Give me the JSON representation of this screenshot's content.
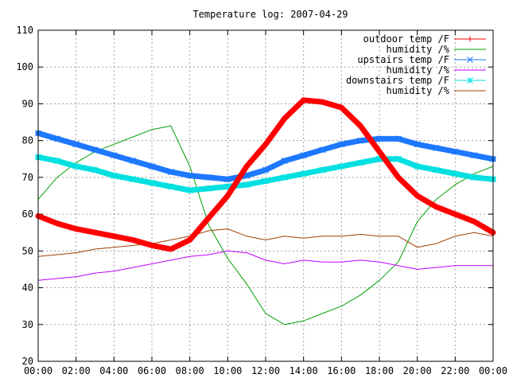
{
  "chart_data": {
    "type": "line",
    "title": "Temperature log: 2007-04-29",
    "xlabel": "",
    "ylabel": "",
    "xlim": [
      0,
      24
    ],
    "ylim": [
      20,
      110
    ],
    "grid": true,
    "legend_position": "top-right",
    "x_ticks": [
      "00:00",
      "02:00",
      "04:00",
      "06:00",
      "08:00",
      "10:00",
      "12:00",
      "14:00",
      "16:00",
      "18:00",
      "20:00",
      "22:00",
      "00:00"
    ],
    "y_ticks": [
      20,
      30,
      40,
      50,
      60,
      70,
      80,
      90,
      100,
      110
    ],
    "x": [
      0,
      1,
      2,
      3,
      4,
      5,
      6,
      7,
      8,
      9,
      10,
      11,
      12,
      13,
      14,
      15,
      16,
      17,
      18,
      19,
      20,
      21,
      22,
      23,
      24
    ],
    "series": [
      {
        "name": "outdoor temp /F",
        "color": "#ff0000",
        "marker": "plus",
        "values": [
          59.5,
          57.5,
          56,
          55,
          54,
          53,
          51.5,
          50.5,
          53,
          59,
          65,
          73,
          79,
          86,
          91,
          90.5,
          89,
          84,
          77,
          70,
          65,
          62,
          60,
          58,
          55
        ]
      },
      {
        "name": "humidity /%",
        "color": "#00a000",
        "marker": "none",
        "values": [
          64,
          70,
          74,
          77,
          79,
          81,
          83,
          84,
          73,
          57,
          48,
          41,
          33,
          30,
          31,
          33,
          35,
          38,
          42,
          47,
          58,
          64,
          68,
          71,
          73
        ]
      },
      {
        "name": "upstairs temp /F",
        "color": "#1e78ff",
        "marker": "x",
        "values": [
          82,
          80.5,
          79,
          77.5,
          76,
          74.5,
          73,
          71.5,
          70.5,
          70,
          69.5,
          70.5,
          72,
          74.5,
          76,
          77.5,
          79,
          80,
          80.5,
          80.5,
          79,
          78,
          77,
          76,
          75
        ]
      },
      {
        "name": "humidity /%",
        "color": "#c000ff",
        "marker": "none",
        "values": [
          42,
          42.5,
          43,
          44,
          44.5,
          45.5,
          46.5,
          47.5,
          48.5,
          49,
          50,
          49.5,
          47.5,
          46.5,
          47.5,
          47,
          47,
          47.5,
          47,
          46,
          45,
          45.5,
          46,
          46,
          46
        ]
      },
      {
        "name": "downstairs temp /F",
        "color": "#00e0e0",
        "marker": "star",
        "values": [
          75.5,
          74.5,
          73,
          72,
          70.5,
          69.5,
          68.5,
          67.5,
          66.5,
          67,
          67.5,
          68,
          69,
          70,
          71,
          72,
          73,
          74,
          75,
          75,
          73,
          72,
          71,
          70,
          69.5
        ]
      },
      {
        "name": "humidity /%",
        "color": "#a04000",
        "marker": "none",
        "values": [
          48.5,
          49,
          49.5,
          50.5,
          51,
          51.5,
          52,
          53,
          54,
          55.5,
          56,
          54,
          53,
          54,
          53.5,
          54,
          54,
          54.5,
          54,
          54,
          51,
          52,
          54,
          55,
          54
        ]
      }
    ]
  }
}
